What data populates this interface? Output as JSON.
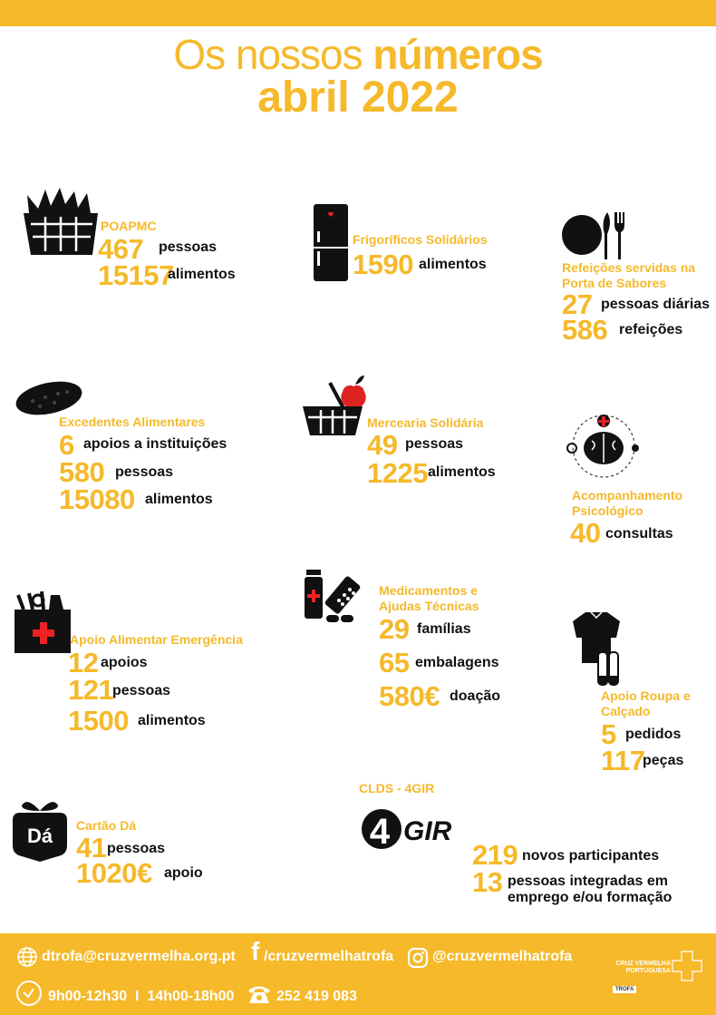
{
  "header": {
    "title_light": "Os nossos",
    "title_bold": "números",
    "subtitle": "abril 2022"
  },
  "brand_color": "#F5B92A",
  "sections": [
    {
      "icon": "grocery-basket-icon",
      "label": [
        "POAPMC"
      ],
      "stats": [
        {
          "value": "467",
          "unit": "pessoas"
        },
        {
          "value": "15157",
          "unit": "alimentos"
        }
      ]
    },
    {
      "icon": "fridge-icon",
      "label": [
        "Frigoríficos Solidários"
      ],
      "stats": [
        {
          "value": "1590",
          "unit": "alimentos"
        }
      ]
    },
    {
      "icon": "plate-cutlery-icon",
      "label": [
        "Refeições servidas na",
        "Porta de Sabores"
      ],
      "stats": [
        {
          "value": "27",
          "unit": "pessoas diárias"
        },
        {
          "value": "586",
          "unit": "refeições"
        }
      ]
    },
    {
      "icon": "bread-icon",
      "label": [
        "Excedentes Alimentares"
      ],
      "stats": [
        {
          "value": "6",
          "unit": "apoios a instituições"
        },
        {
          "value": "580",
          "unit": "pessoas"
        },
        {
          "value": "15080",
          "unit": "alimentos"
        }
      ]
    },
    {
      "icon": "basket-apple-icon",
      "label": [
        "Mercearia Solidária"
      ],
      "stats": [
        {
          "value": "49",
          "unit": "pessoas"
        },
        {
          "value": "1225",
          "unit": "alimentos"
        }
      ]
    },
    {
      "icon": "brain-icon",
      "label": [
        "Acompanhamento",
        "Psicológico"
      ],
      "stats": [
        {
          "value": "40",
          "unit": "consultas"
        }
      ]
    },
    {
      "icon": "emergency-bag-icon",
      "label": [
        "Apoio Alimentar Emergência"
      ],
      "stats": [
        {
          "value": "12",
          "unit": "apoios"
        },
        {
          "value": "121",
          "unit": "pessoas"
        },
        {
          "value": "1500",
          "unit": "alimentos"
        }
      ]
    },
    {
      "icon": "medicine-icon",
      "label": [
        "Medicamentos e",
        "Ajudas Técnicas"
      ],
      "stats": [
        {
          "value": "29",
          "unit": "famílias"
        },
        {
          "value": "65",
          "unit": "embalagens"
        },
        {
          "value": "580€",
          "unit": "doação"
        }
      ]
    },
    {
      "icon": "clothes-shoes-icon",
      "label": [
        "Apoio Roupa e",
        "Calçado"
      ],
      "stats": [
        {
          "value": "5",
          "unit": "pedidos"
        },
        {
          "value": "117",
          "unit": "peças"
        }
      ]
    },
    {
      "icon": "da-gift-icon",
      "icon_text": "Dá",
      "label": [
        "Cartão Dá"
      ],
      "stats": [
        {
          "value": "41",
          "unit": "pessoas"
        },
        {
          "value": "1020€",
          "unit": "apoio"
        }
      ]
    },
    {
      "icon": "4gir-logo-icon",
      "icon_text": "4GIR",
      "label": [
        "CLDS - 4GIR"
      ],
      "stats": [
        {
          "value": "219",
          "unit": "novos participantes"
        },
        {
          "value": "13",
          "unit": "pessoas integradas em\nemprego e/ou formação"
        }
      ]
    }
  ],
  "footer": {
    "email": "dtrofa@cruzvermelha.org.pt",
    "facebook": "/cruzvermelhatrofa",
    "instagram": "@cruzvermelhatrofa",
    "hours": "9h00-12h30  I  14h00-18h00",
    "phone": "252 419 083",
    "logo": {
      "line1": "CRUZ VERMELHA",
      "line2": "PORTUGUESA",
      "branch": "TROFA"
    }
  }
}
